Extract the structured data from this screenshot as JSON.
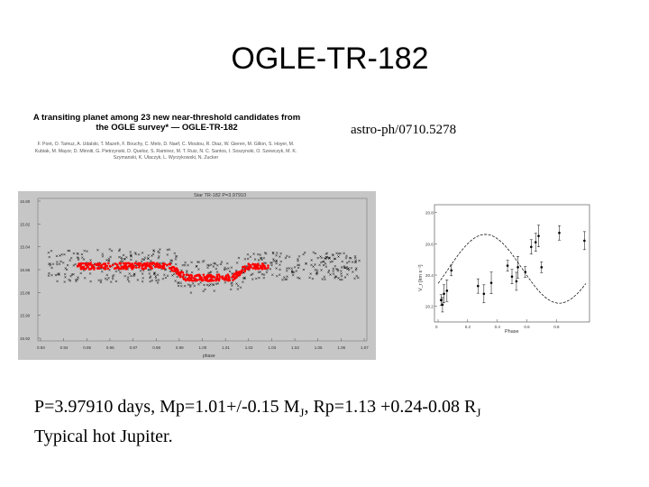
{
  "slide": {
    "title": "OGLE-TR-182",
    "arxiv_ref": "astro-ph/0710.5278",
    "paper_title": "A transiting planet among 23 new near-threshold candidates from the OGLE survey* — OGLE-TR-182",
    "paper_authors": "F. Pont, O. Tamuz, A. Udalski, T. Mazeh, F. Bouchy, C. Melo, D. Naef, C. Moutou, R. Diaz, W. Gieren, M. Gillon, S. Hoyer, M. Kubiak, M. Mayor, D. Minniti, G. Pietrzynski, D. Queloz, S. Ramirez, M. T. Ruiz, N. C. Santos, I. Soszynski, O. Szewczyk, M. K. Szymanski, K. Ulaczyk, L. Wyrzykowski, N. Zucker",
    "caption_line1": {
      "p": "P=3.97910 days, Mp=1.01+/-0.15 M",
      "mj_sub": "J",
      "rp": ", Rp=1.13 +0.24-0.08 R",
      "rj_sub": "J"
    },
    "caption_line2": "Typical hot Jupiter."
  },
  "light_curve_plot": {
    "header": "Star TR-182  P=3.97910",
    "xlabel": "phase",
    "y_ticks": [
      "15.80",
      "15.82",
      "15.84",
      "15.86",
      "15.88",
      "15.90",
      "15.92"
    ],
    "x_ticks": [
      "0.93",
      "0.94",
      "0.95",
      "0.96",
      "0.97",
      "0.98",
      "0.99",
      "1.00",
      "1.01",
      "1.02",
      "1.03",
      "1.04",
      "1.05",
      "1.06",
      "1.07"
    ],
    "colors": {
      "background": "#c6c6c6",
      "model": "#ff0000",
      "points": "#000000"
    }
  },
  "rv_plot": {
    "xlabel": "Phase",
    "ylabel": "V_r [km s⁻¹]",
    "y_ticks": [
      "20.8",
      "20.6",
      "20.4",
      "20.2"
    ],
    "x_ticks": [
      "0",
      "0.2",
      "0.4",
      "0.6",
      "0.8"
    ],
    "rv_points": [
      [
        0.02,
        20.24
      ],
      [
        0.03,
        20.21
      ],
      [
        0.04,
        20.28
      ],
      [
        0.06,
        20.3
      ],
      [
        0.09,
        20.43
      ],
      [
        0.27,
        20.33
      ],
      [
        0.31,
        20.28
      ],
      [
        0.36,
        20.35
      ],
      [
        0.47,
        20.46
      ],
      [
        0.5,
        20.39
      ],
      [
        0.53,
        20.36
      ],
      [
        0.54,
        20.45
      ],
      [
        0.59,
        20.42
      ],
      [
        0.63,
        20.58
      ],
      [
        0.66,
        20.61
      ],
      [
        0.68,
        20.65
      ],
      [
        0.7,
        20.45
      ],
      [
        0.82,
        20.67
      ],
      [
        0.99,
        20.62
      ]
    ]
  }
}
